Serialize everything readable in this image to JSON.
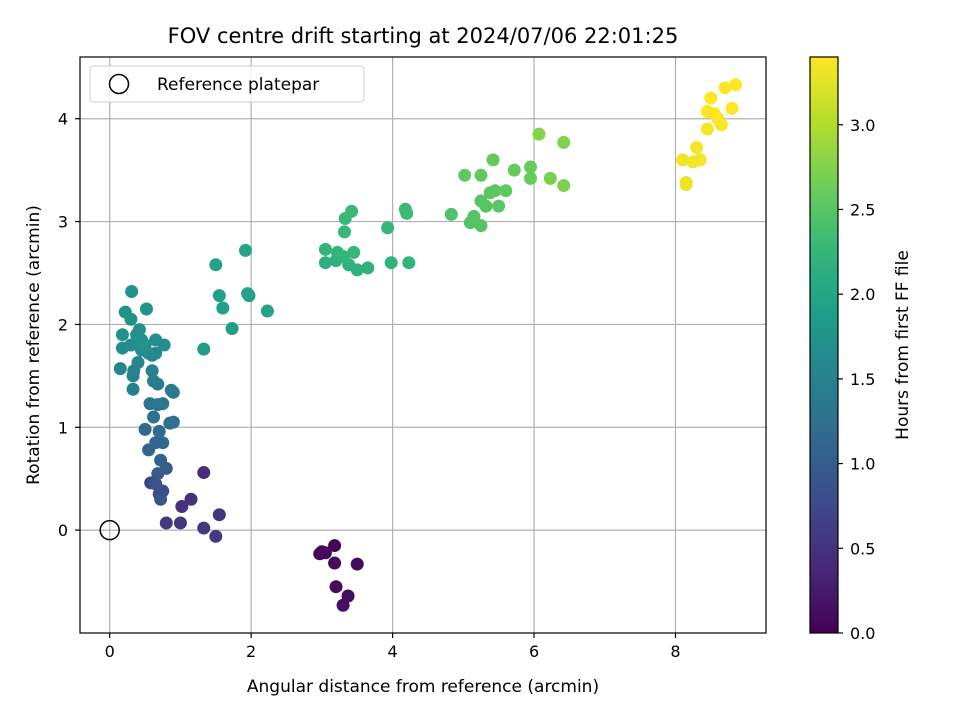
{
  "chart_data": {
    "type": "scatter",
    "title": "FOV centre drift starting at 2024/07/06 22:01:25",
    "xlabel": "Angular distance from reference (arcmin)",
    "ylabel": "Rotation from reference (arcmin)",
    "xlim": [
      -0.42,
      9.28
    ],
    "ylim": [
      -1.0,
      4.6
    ],
    "xticks": [
      0,
      2,
      4,
      6,
      8
    ],
    "yticks": [
      0,
      1,
      2,
      3,
      4
    ],
    "grid": true,
    "legend": {
      "placement": "top-left",
      "entries": [
        "Reference platepar"
      ]
    },
    "reference_point": {
      "x": 0,
      "y": 0,
      "marker": "open-circle",
      "color": "#000000"
    },
    "colorbar": {
      "label": "Hours from first FF file",
      "range": [
        0.0,
        3.4
      ],
      "ticks": [
        "0.0",
        "0.5",
        "1.0",
        "1.5",
        "2.0",
        "2.5",
        "3.0"
      ],
      "colormap": "viridis",
      "colormap_stops": [
        "#440154",
        "#482878",
        "#3e4989",
        "#31688e",
        "#26828e",
        "#1f9e89",
        "#35b779",
        "#6ece58",
        "#b5de2b",
        "#fde725"
      ]
    },
    "points": [
      {
        "x": 3.18,
        "y": -0.15,
        "t": 0.05
      },
      {
        "x": 3.05,
        "y": -0.22,
        "t": 0.06
      },
      {
        "x": 2.97,
        "y": -0.23,
        "t": 0.07
      },
      {
        "x": 3.0,
        "y": -0.21,
        "t": 0.08
      },
      {
        "x": 3.18,
        "y": -0.32,
        "t": 0.09
      },
      {
        "x": 3.5,
        "y": -0.33,
        "t": 0.1
      },
      {
        "x": 3.2,
        "y": -0.55,
        "t": 0.11
      },
      {
        "x": 3.37,
        "y": -0.64,
        "t": 0.12
      },
      {
        "x": 3.3,
        "y": -0.73,
        "t": 0.13
      },
      {
        "x": 1.33,
        "y": 0.56,
        "t": 0.45
      },
      {
        "x": 1.15,
        "y": 0.3,
        "t": 0.48
      },
      {
        "x": 1.02,
        "y": 0.23,
        "t": 0.5
      },
      {
        "x": 1.55,
        "y": 0.15,
        "t": 0.52
      },
      {
        "x": 1.0,
        "y": 0.07,
        "t": 0.53
      },
      {
        "x": 0.8,
        "y": 0.07,
        "t": 0.55
      },
      {
        "x": 1.33,
        "y": 0.02,
        "t": 0.57
      },
      {
        "x": 1.5,
        "y": -0.06,
        "t": 0.58
      },
      {
        "x": 0.58,
        "y": 0.46,
        "t": 0.7
      },
      {
        "x": 0.7,
        "y": 0.35,
        "t": 0.75
      },
      {
        "x": 0.75,
        "y": 0.38,
        "t": 0.8
      },
      {
        "x": 0.65,
        "y": 0.45,
        "t": 0.85
      },
      {
        "x": 0.72,
        "y": 0.3,
        "t": 0.9
      },
      {
        "x": 0.68,
        "y": 0.55,
        "t": 0.95
      },
      {
        "x": 0.8,
        "y": 0.6,
        "t": 1.0
      },
      {
        "x": 0.72,
        "y": 0.68,
        "t": 1.05
      },
      {
        "x": 0.55,
        "y": 0.78,
        "t": 1.1
      },
      {
        "x": 0.65,
        "y": 0.85,
        "t": 1.12
      },
      {
        "x": 0.75,
        "y": 0.85,
        "t": 1.15
      },
      {
        "x": 0.5,
        "y": 0.98,
        "t": 1.18
      },
      {
        "x": 0.7,
        "y": 0.96,
        "t": 1.2
      },
      {
        "x": 0.85,
        "y": 1.04,
        "t": 1.22
      },
      {
        "x": 0.9,
        "y": 1.05,
        "t": 1.25
      },
      {
        "x": 0.62,
        "y": 1.1,
        "t": 1.28
      },
      {
        "x": 0.57,
        "y": 1.23,
        "t": 1.3
      },
      {
        "x": 0.75,
        "y": 1.23,
        "t": 1.32
      },
      {
        "x": 0.68,
        "y": 1.22,
        "t": 1.35
      },
      {
        "x": 0.9,
        "y": 1.34,
        "t": 1.38
      },
      {
        "x": 0.87,
        "y": 1.36,
        "t": 1.4
      },
      {
        "x": 0.68,
        "y": 1.42,
        "t": 1.42
      },
      {
        "x": 0.62,
        "y": 1.45,
        "t": 1.45
      },
      {
        "x": 0.6,
        "y": 1.55,
        "t": 1.48
      },
      {
        "x": 0.33,
        "y": 1.37,
        "t": 1.5
      },
      {
        "x": 0.33,
        "y": 1.5,
        "t": 1.52
      },
      {
        "x": 0.34,
        "y": 1.55,
        "t": 1.54
      },
      {
        "x": 0.15,
        "y": 1.57,
        "t": 1.55
      },
      {
        "x": 0.4,
        "y": 1.63,
        "t": 1.57
      },
      {
        "x": 0.6,
        "y": 1.7,
        "t": 1.58
      },
      {
        "x": 0.65,
        "y": 1.72,
        "t": 1.6
      },
      {
        "x": 0.55,
        "y": 1.72,
        "t": 1.62
      },
      {
        "x": 0.18,
        "y": 1.77,
        "t": 1.63
      },
      {
        "x": 0.3,
        "y": 1.8,
        "t": 1.64
      },
      {
        "x": 0.45,
        "y": 1.75,
        "t": 1.65
      },
      {
        "x": 0.77,
        "y": 1.8,
        "t": 1.66
      },
      {
        "x": 0.65,
        "y": 1.85,
        "t": 1.67
      },
      {
        "x": 0.38,
        "y": 1.9,
        "t": 1.68
      },
      {
        "x": 0.42,
        "y": 1.95,
        "t": 1.7
      },
      {
        "x": 0.18,
        "y": 1.9,
        "t": 1.71
      },
      {
        "x": 0.3,
        "y": 2.05,
        "t": 1.72
      },
      {
        "x": 0.5,
        "y": 1.8,
        "t": 1.73
      },
      {
        "x": 0.22,
        "y": 2.12,
        "t": 1.74
      },
      {
        "x": 0.52,
        "y": 2.15,
        "t": 1.75
      },
      {
        "x": 0.31,
        "y": 2.32,
        "t": 1.76
      },
      {
        "x": 0.45,
        "y": 1.85,
        "t": 1.77
      },
      {
        "x": 1.33,
        "y": 1.76,
        "t": 1.88
      },
      {
        "x": 1.73,
        "y": 1.96,
        "t": 1.9
      },
      {
        "x": 1.6,
        "y": 2.16,
        "t": 1.92
      },
      {
        "x": 1.55,
        "y": 2.28,
        "t": 1.93
      },
      {
        "x": 2.23,
        "y": 2.13,
        "t": 1.95
      },
      {
        "x": 1.97,
        "y": 2.28,
        "t": 1.96
      },
      {
        "x": 1.95,
        "y": 2.3,
        "t": 1.97
      },
      {
        "x": 1.5,
        "y": 2.58,
        "t": 1.98
      },
      {
        "x": 1.92,
        "y": 2.72,
        "t": 2.0
      },
      {
        "x": 3.05,
        "y": 2.6,
        "t": 2.15
      },
      {
        "x": 3.2,
        "y": 2.62,
        "t": 2.16
      },
      {
        "x": 3.38,
        "y": 2.58,
        "t": 2.17
      },
      {
        "x": 3.5,
        "y": 2.53,
        "t": 2.18
      },
      {
        "x": 3.65,
        "y": 2.55,
        "t": 2.19
      },
      {
        "x": 3.98,
        "y": 2.6,
        "t": 2.2
      },
      {
        "x": 4.23,
        "y": 2.6,
        "t": 2.21
      },
      {
        "x": 3.05,
        "y": 2.73,
        "t": 2.22
      },
      {
        "x": 3.22,
        "y": 2.7,
        "t": 2.23
      },
      {
        "x": 3.3,
        "y": 2.66,
        "t": 2.24
      },
      {
        "x": 3.45,
        "y": 2.7,
        "t": 2.25
      },
      {
        "x": 3.32,
        "y": 2.9,
        "t": 2.26
      },
      {
        "x": 3.93,
        "y": 2.94,
        "t": 2.27
      },
      {
        "x": 3.33,
        "y": 3.03,
        "t": 2.28
      },
      {
        "x": 3.42,
        "y": 3.1,
        "t": 2.29
      },
      {
        "x": 4.18,
        "y": 3.12,
        "t": 2.3
      },
      {
        "x": 4.2,
        "y": 3.08,
        "t": 2.31
      },
      {
        "x": 4.83,
        "y": 3.07,
        "t": 2.45
      },
      {
        "x": 5.1,
        "y": 2.99,
        "t": 2.46
      },
      {
        "x": 5.15,
        "y": 3.05,
        "t": 2.47
      },
      {
        "x": 5.25,
        "y": 2.96,
        "t": 2.48
      },
      {
        "x": 5.25,
        "y": 3.2,
        "t": 2.49
      },
      {
        "x": 5.32,
        "y": 3.15,
        "t": 2.5
      },
      {
        "x": 5.5,
        "y": 3.15,
        "t": 2.51
      },
      {
        "x": 5.38,
        "y": 3.28,
        "t": 2.52
      },
      {
        "x": 5.45,
        "y": 3.3,
        "t": 2.53
      },
      {
        "x": 5.6,
        "y": 3.3,
        "t": 2.54
      },
      {
        "x": 5.02,
        "y": 3.45,
        "t": 2.55
      },
      {
        "x": 5.25,
        "y": 3.45,
        "t": 2.56
      },
      {
        "x": 5.42,
        "y": 3.6,
        "t": 2.57
      },
      {
        "x": 5.72,
        "y": 3.5,
        "t": 2.58
      },
      {
        "x": 5.95,
        "y": 3.42,
        "t": 2.59
      },
      {
        "x": 5.95,
        "y": 3.53,
        "t": 2.6
      },
      {
        "x": 6.23,
        "y": 3.42,
        "t": 2.7
      },
      {
        "x": 6.42,
        "y": 3.35,
        "t": 2.72
      },
      {
        "x": 6.42,
        "y": 3.77,
        "t": 2.74
      },
      {
        "x": 6.07,
        "y": 3.85,
        "t": 2.76
      },
      {
        "x": 8.15,
        "y": 3.36,
        "t": 3.3
      },
      {
        "x": 8.15,
        "y": 3.38,
        "t": 3.31
      },
      {
        "x": 8.1,
        "y": 3.6,
        "t": 3.32
      },
      {
        "x": 8.25,
        "y": 3.58,
        "t": 3.33
      },
      {
        "x": 8.35,
        "y": 3.6,
        "t": 3.34
      },
      {
        "x": 8.3,
        "y": 3.72,
        "t": 3.35
      },
      {
        "x": 8.45,
        "y": 3.9,
        "t": 3.36
      },
      {
        "x": 8.65,
        "y": 3.94,
        "t": 3.37
      },
      {
        "x": 8.6,
        "y": 4.0,
        "t": 3.38
      },
      {
        "x": 8.45,
        "y": 4.07,
        "t": 3.39
      },
      {
        "x": 8.55,
        "y": 4.05,
        "t": 3.4
      },
      {
        "x": 8.8,
        "y": 4.1,
        "t": 3.41
      },
      {
        "x": 8.5,
        "y": 4.2,
        "t": 3.42
      },
      {
        "x": 8.7,
        "y": 4.3,
        "t": 3.43
      },
      {
        "x": 8.85,
        "y": 4.33,
        "t": 3.44
      }
    ]
  }
}
